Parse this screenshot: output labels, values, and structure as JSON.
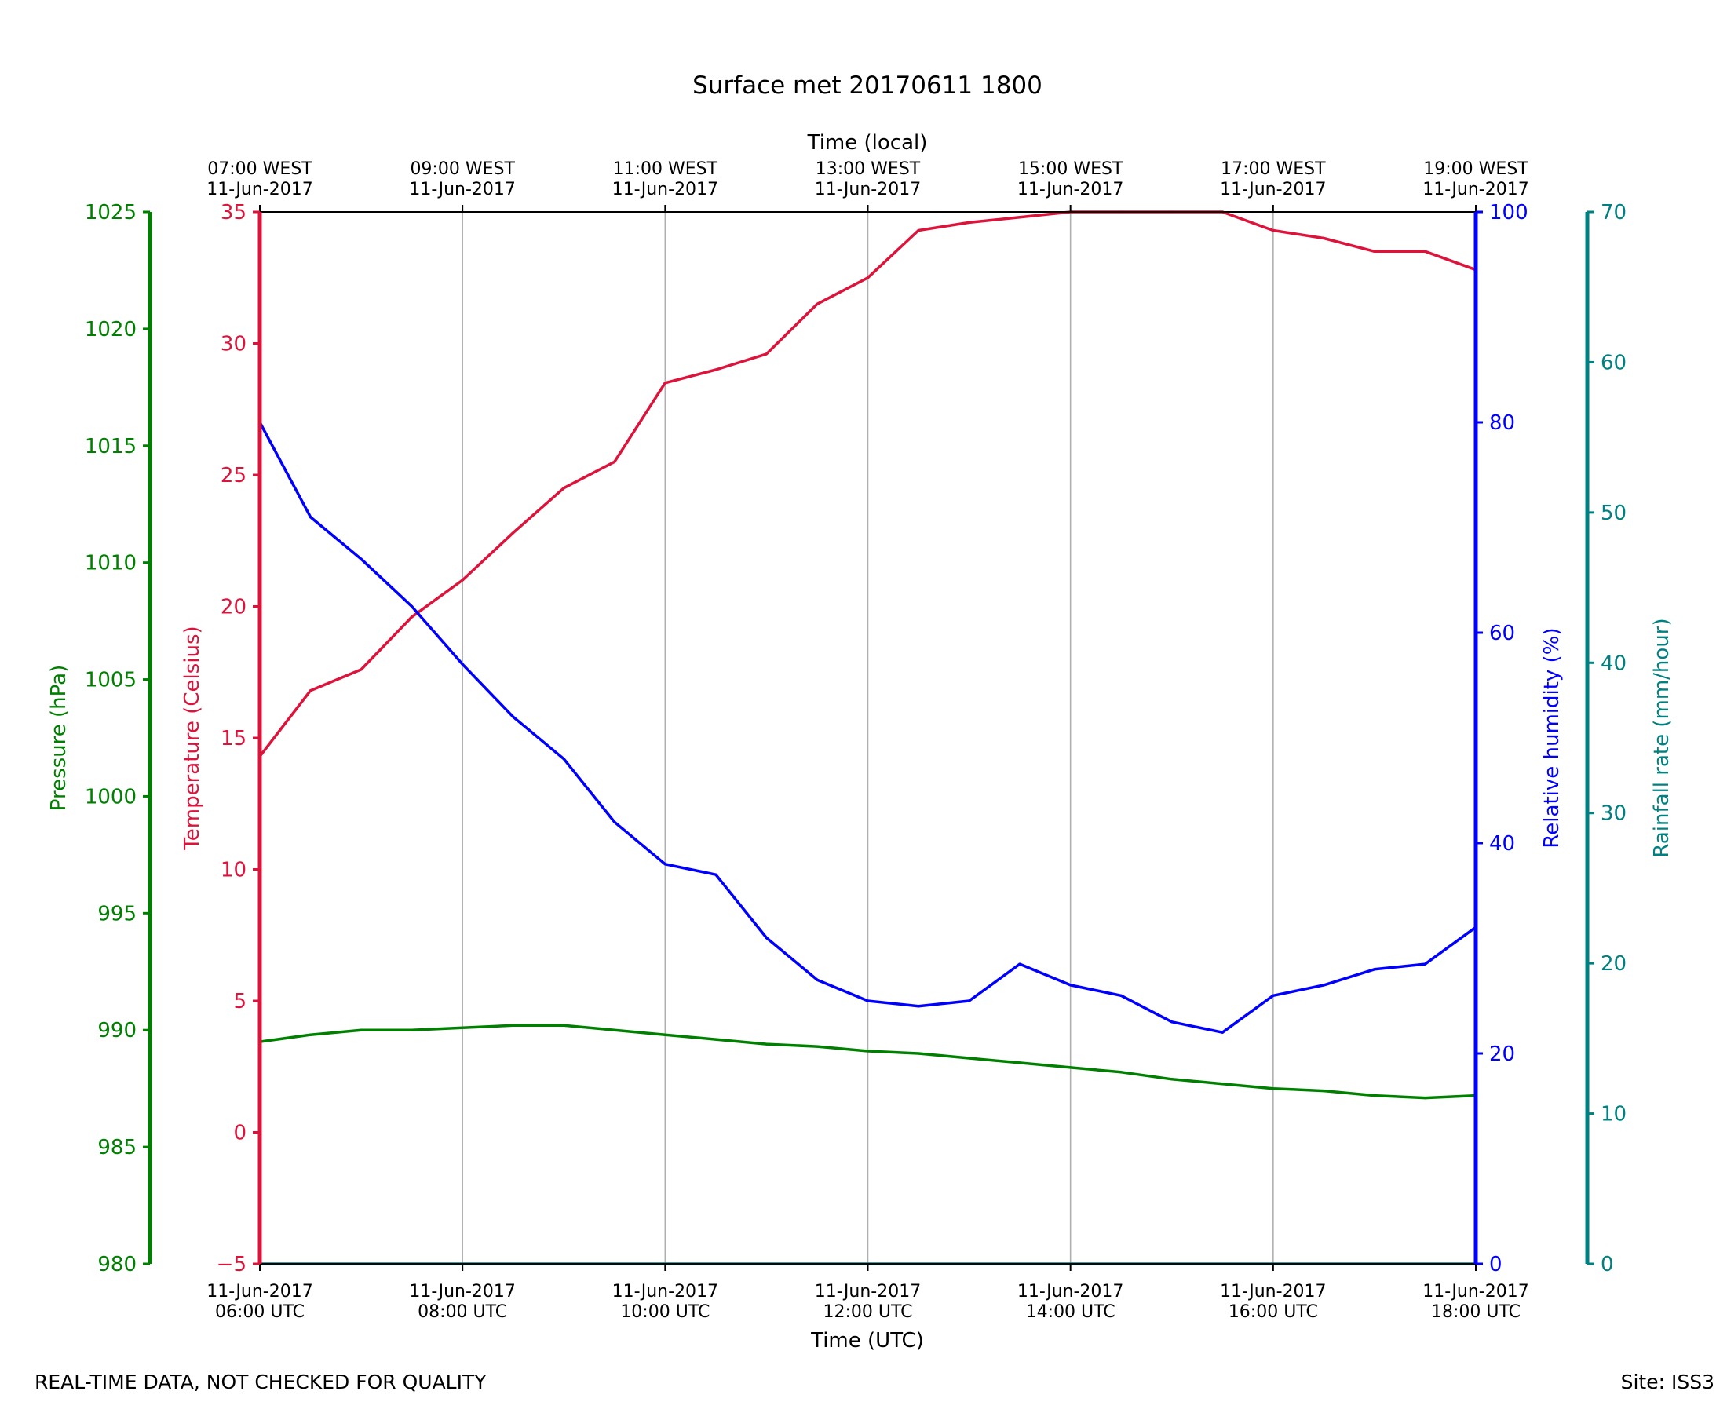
{
  "chart_data": {
    "type": "line",
    "title": "Surface met 20170611 1800",
    "xlabel": "Time (UTC)",
    "x2label": "Time (local)",
    "xlim": [
      "2017-06-11T06:00",
      "2017-06-11T18:00"
    ],
    "x_ticks": [
      "2017-06-11T06:00",
      "2017-06-11T08:00",
      "2017-06-11T10:00",
      "2017-06-11T12:00",
      "2017-06-11T14:00",
      "2017-06-11T16:00",
      "2017-06-11T18:00"
    ],
    "x_ticklabels": [
      [
        "11-Jun-2017",
        "06:00 UTC"
      ],
      [
        "11-Jun-2017",
        "08:00 UTC"
      ],
      [
        "11-Jun-2017",
        "10:00 UTC"
      ],
      [
        "11-Jun-2017",
        "12:00 UTC"
      ],
      [
        "11-Jun-2017",
        "14:00 UTC"
      ],
      [
        "11-Jun-2017",
        "16:00 UTC"
      ],
      [
        "11-Jun-2017",
        "18:00 UTC"
      ]
    ],
    "x2_ticklabels": [
      [
        "07:00 WEST",
        "11-Jun-2017"
      ],
      [
        "09:00 WEST",
        "11-Jun-2017"
      ],
      [
        "11:00 WEST",
        "11-Jun-2017"
      ],
      [
        "13:00 WEST",
        "11-Jun-2017"
      ],
      [
        "15:00 WEST",
        "11-Jun-2017"
      ],
      [
        "17:00 WEST",
        "11-Jun-2017"
      ],
      [
        "19:00 WEST",
        "11-Jun-2017"
      ]
    ],
    "vertical_grid": true,
    "axes": [
      {
        "id": "pressure",
        "label": "Pressure (hPa)",
        "side": "left-outer",
        "color": "#008000",
        "ylim": [
          980,
          1025
        ],
        "ticks": [
          980,
          985,
          990,
          995,
          1000,
          1005,
          1010,
          1015,
          1020,
          1025
        ]
      },
      {
        "id": "temperature",
        "label": "Temperature (Celsius)",
        "side": "left",
        "color": "#dc143c",
        "ylim": [
          -5,
          35
        ],
        "ticks": [
          -5,
          0,
          5,
          10,
          15,
          20,
          25,
          30,
          35
        ]
      },
      {
        "id": "humidity",
        "label": "Relative humidity (%)",
        "side": "right",
        "color": "#0000ff",
        "ylim": [
          0,
          100
        ],
        "ticks": [
          0,
          20,
          40,
          60,
          80,
          100
        ]
      },
      {
        "id": "rainfall",
        "label": "Rainfall rate (mm/hour)",
        "side": "right-outer",
        "color": "#008080",
        "ylim": [
          0,
          70
        ],
        "ticks": [
          0,
          10,
          20,
          30,
          40,
          50,
          60,
          70
        ]
      }
    ],
    "series": [
      {
        "name": "Temperature (Celsius)",
        "axis": "temperature",
        "color": "#dc143c",
        "x": [
          "2017-06-11T06:00",
          "2017-06-11T06:30",
          "2017-06-11T07:00",
          "2017-06-11T07:30",
          "2017-06-11T08:00",
          "2017-06-11T08:30",
          "2017-06-11T09:00",
          "2017-06-11T09:30",
          "2017-06-11T10:00",
          "2017-06-11T10:30",
          "2017-06-11T11:00",
          "2017-06-11T11:30",
          "2017-06-11T12:00",
          "2017-06-11T12:30",
          "2017-06-11T13:00",
          "2017-06-11T13:30",
          "2017-06-11T14:00",
          "2017-06-11T14:30",
          "2017-06-11T15:00",
          "2017-06-11T15:30",
          "2017-06-11T16:00",
          "2017-06-11T16:30",
          "2017-06-11T17:00",
          "2017-06-11T17:30",
          "2017-06-11T18:00"
        ],
        "values": [
          14.3,
          16.8,
          17.6,
          19.6,
          21.0,
          22.8,
          24.5,
          25.5,
          28.5,
          29.0,
          29.6,
          31.5,
          32.5,
          34.3,
          34.6,
          34.8,
          35.0,
          35.0,
          35.0,
          35.0,
          34.3,
          34.0,
          33.5,
          33.5,
          32.8
        ]
      },
      {
        "name": "Relative humidity (%)",
        "axis": "humidity",
        "color": "#0000ff",
        "x": [
          "2017-06-11T06:00",
          "2017-06-11T06:30",
          "2017-06-11T07:00",
          "2017-06-11T07:30",
          "2017-06-11T08:00",
          "2017-06-11T08:30",
          "2017-06-11T09:00",
          "2017-06-11T09:30",
          "2017-06-11T10:00",
          "2017-06-11T10:30",
          "2017-06-11T11:00",
          "2017-06-11T11:30",
          "2017-06-11T12:00",
          "2017-06-11T12:30",
          "2017-06-11T13:00",
          "2017-06-11T13:30",
          "2017-06-11T14:00",
          "2017-06-11T14:30",
          "2017-06-11T15:00",
          "2017-06-11T15:30",
          "2017-06-11T16:00",
          "2017-06-11T16:30",
          "2017-06-11T17:00",
          "2017-06-11T17:30",
          "2017-06-11T18:00"
        ],
        "values": [
          80.0,
          71.0,
          67.0,
          62.5,
          57.0,
          52.0,
          48.0,
          42.0,
          38.0,
          37.0,
          31.0,
          27.0,
          25.0,
          24.5,
          25.0,
          28.5,
          26.5,
          25.5,
          23.0,
          22.0,
          25.5,
          26.5,
          28.0,
          28.5,
          32.0
        ]
      },
      {
        "name": "Pressure (hPa)",
        "axis": "pressure",
        "color": "#008000",
        "x": [
          "2017-06-11T06:00",
          "2017-06-11T06:30",
          "2017-06-11T07:00",
          "2017-06-11T07:30",
          "2017-06-11T08:00",
          "2017-06-11T08:30",
          "2017-06-11T09:00",
          "2017-06-11T09:30",
          "2017-06-11T10:00",
          "2017-06-11T10:30",
          "2017-06-11T11:00",
          "2017-06-11T11:30",
          "2017-06-11T12:00",
          "2017-06-11T12:30",
          "2017-06-11T13:00",
          "2017-06-11T13:30",
          "2017-06-11T14:00",
          "2017-06-11T14:30",
          "2017-06-11T15:00",
          "2017-06-11T15:30",
          "2017-06-11T16:00",
          "2017-06-11T16:30",
          "2017-06-11T17:00",
          "2017-06-11T17:30",
          "2017-06-11T18:00"
        ],
        "values": [
          989.5,
          989.8,
          990.0,
          990.0,
          990.1,
          990.2,
          990.2,
          990.0,
          989.8,
          989.6,
          989.4,
          989.3,
          989.1,
          989.0,
          988.8,
          988.6,
          988.4,
          988.2,
          987.9,
          987.7,
          987.5,
          987.4,
          987.2,
          987.1,
          987.2
        ]
      },
      {
        "name": "Rainfall rate (mm/hour)",
        "axis": "rainfall",
        "color": "#008080",
        "x": [
          "2017-06-11T06:00",
          "2017-06-11T18:00"
        ],
        "values": [
          0,
          0
        ]
      }
    ]
  },
  "footer": {
    "left": "REAL-TIME DATA, NOT CHECKED FOR QUALITY",
    "right": "Site: ISS3"
  },
  "colors": {
    "temperature": "#dc143c",
    "humidity": "#0000ff",
    "pressure": "#008000",
    "rainfall": "#008080",
    "grid": "#b0b0b0"
  }
}
